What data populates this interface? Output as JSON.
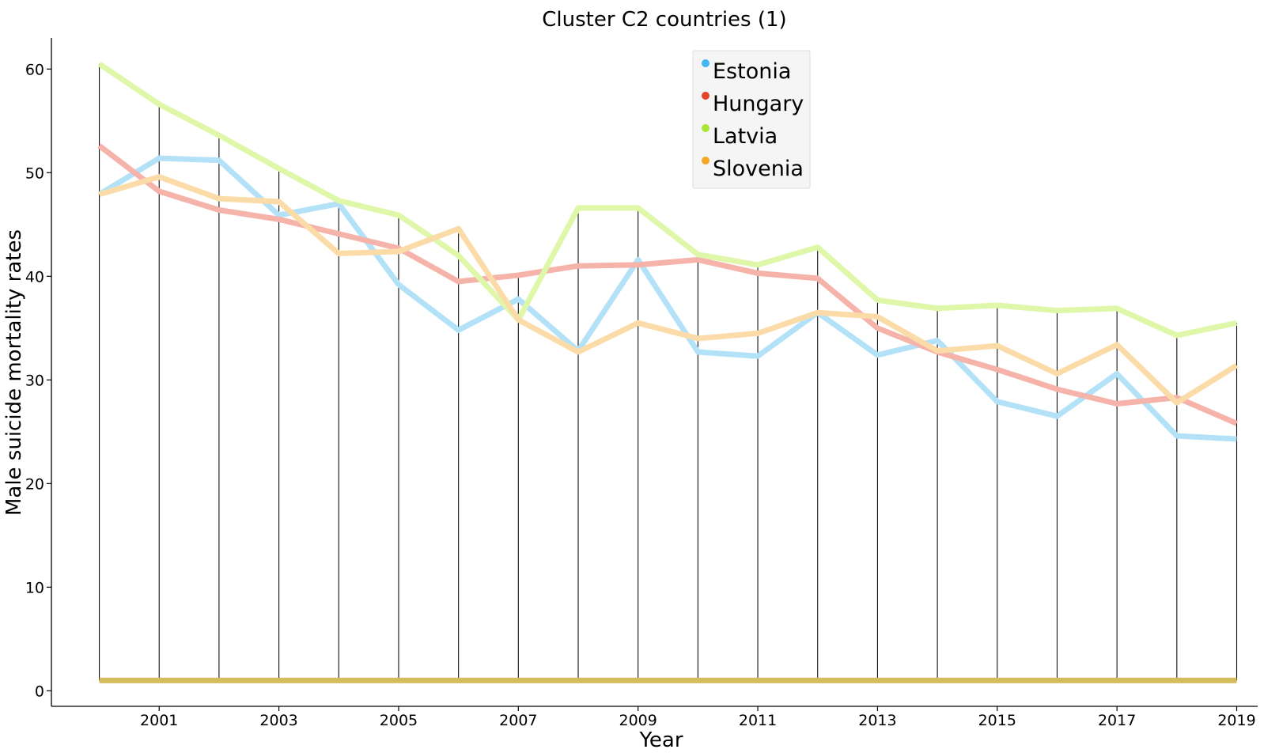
{
  "chart_data": {
    "type": "line",
    "title": "Cluster C2 countries (1)",
    "xlabel": "Year",
    "ylabel": "Male suicide mortality rates",
    "x": [
      2000,
      2001,
      2002,
      2003,
      2004,
      2005,
      2006,
      2007,
      2008,
      2009,
      2010,
      2011,
      2012,
      2013,
      2014,
      2015,
      2016,
      2017,
      2018,
      2019
    ],
    "xticks": [
      2001,
      2003,
      2005,
      2007,
      2009,
      2011,
      2013,
      2015,
      2017,
      2019
    ],
    "yticks": [
      0,
      10,
      20,
      30,
      40,
      50,
      60
    ],
    "xlim": [
      1999.2,
      2019.35
    ],
    "ylim": [
      -1.5,
      63
    ],
    "grid": false,
    "legend_position": "top-center",
    "baseline": {
      "value": 1,
      "color": "#d4bc5c"
    },
    "series": [
      {
        "name": "Estonia",
        "color": "#41b6f0",
        "line_color": "#b3e2f8",
        "values": [
          47.9,
          51.4,
          51.2,
          45.9,
          47.0,
          39.2,
          34.8,
          37.8,
          32.8,
          41.6,
          32.7,
          32.3,
          36.5,
          32.4,
          33.8,
          27.9,
          26.5,
          30.6,
          24.6,
          24.3
        ]
      },
      {
        "name": "Hungary",
        "color": "#e8442a",
        "line_color": "#f5b3aa",
        "values": [
          52.6,
          48.2,
          46.4,
          45.5,
          44.1,
          42.7,
          39.5,
          40.1,
          41.0,
          41.1,
          41.6,
          40.3,
          39.8,
          35.0,
          32.7,
          31.0,
          29.1,
          27.7,
          28.3,
          25.8
        ]
      },
      {
        "name": "Latvia",
        "color": "#a8e835",
        "line_color": "#dff7a8",
        "values": [
          60.5,
          56.6,
          53.6,
          50.4,
          47.3,
          45.9,
          42.0,
          35.8,
          46.6,
          46.6,
          42.1,
          41.1,
          42.8,
          37.7,
          36.9,
          37.2,
          36.7,
          36.9,
          34.3,
          35.5
        ]
      },
      {
        "name": "Slovenia",
        "color": "#f5a623",
        "line_color": "#fbdca8",
        "values": [
          47.9,
          49.6,
          47.5,
          47.2,
          42.2,
          42.4,
          44.6,
          35.8,
          32.7,
          35.5,
          34.0,
          34.5,
          36.5,
          36.1,
          32.8,
          33.3,
          30.6,
          33.4,
          27.8,
          31.4
        ]
      }
    ]
  }
}
